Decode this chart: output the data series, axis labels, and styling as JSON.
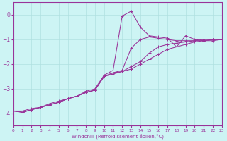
{
  "xlabel": "Windchill (Refroidissement éolien,°C)",
  "background_color": "#cdf4f4",
  "line_color": "#993399",
  "grid_color": "#b0e0e0",
  "xlim": [
    0,
    23
  ],
  "ylim": [
    -4.5,
    0.5
  ],
  "yticks": [
    0,
    -1,
    -2,
    -3,
    -4
  ],
  "xticks": [
    0,
    1,
    2,
    3,
    4,
    5,
    6,
    7,
    8,
    9,
    10,
    11,
    12,
    13,
    14,
    15,
    16,
    17,
    18,
    19,
    20,
    21,
    22,
    23
  ],
  "line1_y": [
    -3.9,
    -3.95,
    -3.85,
    -3.75,
    -3.65,
    -3.55,
    -3.4,
    -3.3,
    -3.15,
    -3.05,
    -2.5,
    -2.35,
    -2.3,
    -2.2,
    -2.0,
    -1.8,
    -1.6,
    -1.4,
    -1.3,
    -1.2,
    -1.1,
    -1.05,
    -1.0,
    -1.0
  ],
  "line2_y": [
    -3.9,
    -3.95,
    -3.85,
    -3.75,
    -3.65,
    -3.55,
    -3.4,
    -3.3,
    -3.15,
    -3.05,
    -2.5,
    -2.4,
    -2.3,
    -2.1,
    -1.9,
    -1.55,
    -1.3,
    -1.2,
    -1.15,
    -1.1,
    -1.05,
    -1.0,
    -1.0,
    -1.0
  ],
  "line3_y": [
    -3.9,
    -3.95,
    -3.85,
    -3.75,
    -3.65,
    -3.55,
    -3.4,
    -3.3,
    -3.15,
    -3.05,
    -2.5,
    -2.35,
    -2.25,
    -1.35,
    -1.0,
    -0.9,
    -0.95,
    -1.0,
    -1.05,
    -1.05,
    -1.05,
    -1.05,
    -1.0,
    -1.0
  ],
  "line4_y": [
    -3.9,
    -3.9,
    -3.8,
    -3.75,
    -3.6,
    -3.5,
    -3.4,
    -3.3,
    -3.1,
    -3.0,
    -2.45,
    -2.25,
    -0.05,
    0.15,
    -0.5,
    -0.85,
    -0.9,
    -0.95,
    -1.3,
    -0.85,
    -1.0,
    -1.05,
    -1.05,
    -1.0
  ]
}
